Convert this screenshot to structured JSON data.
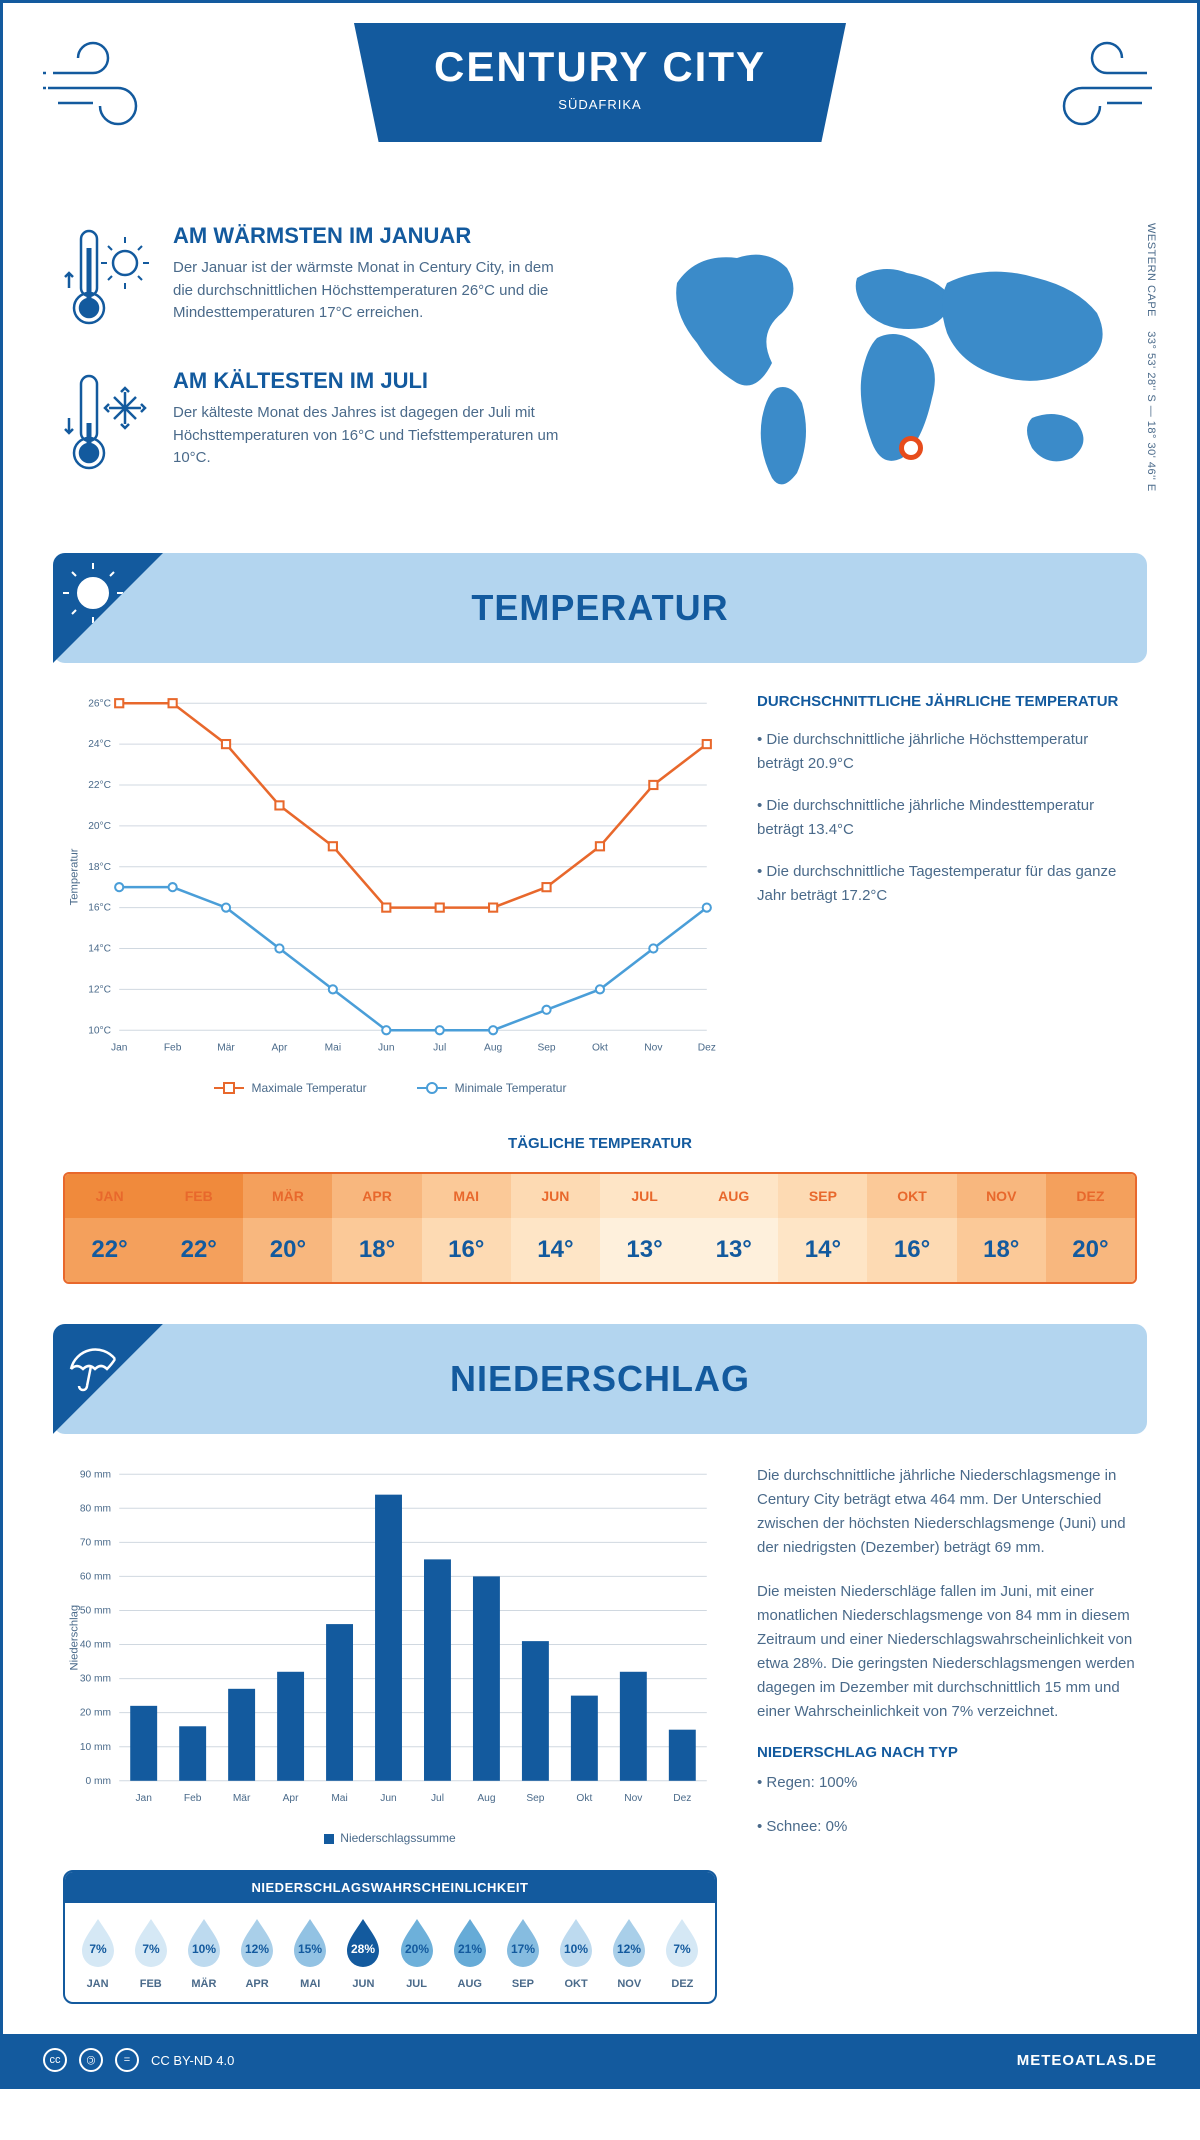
{
  "header": {
    "title": "CENTURY CITY",
    "subtitle": "SÜDAFRIKA"
  },
  "warmest": {
    "title": "AM WÄRMSTEN IM JANUAR",
    "text": "Der Januar ist der wärmste Monat in Century City, in dem die durchschnittlichen Höchsttemperaturen 26°C und die Mindesttemperaturen 17°C erreichen."
  },
  "coldest": {
    "title": "AM KÄLTESTEN IM JULI",
    "text": "Der kälteste Monat des Jahres ist dagegen der Juli mit Höchsttemperaturen von 16°C und Tiefsttemperaturen um 10°C."
  },
  "coords": {
    "lat": "33° 53' 28'' S",
    "lon": "18° 30' 46'' E",
    "region": "WESTERN CAPE"
  },
  "sections": {
    "temp": "TEMPERATUR",
    "precip": "NIEDERSCHLAG"
  },
  "months": [
    "Jan",
    "Feb",
    "Mär",
    "Apr",
    "Mai",
    "Jun",
    "Jul",
    "Aug",
    "Sep",
    "Okt",
    "Nov",
    "Dez"
  ],
  "months_upper": [
    "JAN",
    "FEB",
    "MÄR",
    "APR",
    "MAI",
    "JUN",
    "JUL",
    "AUG",
    "SEP",
    "OKT",
    "NOV",
    "DEZ"
  ],
  "temp_chart": {
    "type": "line",
    "ylabel": "Temperatur",
    "ylim": [
      10,
      26
    ],
    "ytick_step": 2,
    "max_values": [
      26,
      26,
      24,
      21,
      19,
      16,
      16,
      16,
      17,
      19,
      22,
      24
    ],
    "min_values": [
      17,
      17,
      16,
      14,
      12,
      10,
      10,
      10,
      11,
      12,
      14,
      16
    ],
    "max_color": "#e8682c",
    "min_color": "#4a9ed8",
    "max_label": "Maximale Temperatur",
    "min_label": "Minimale Temperatur",
    "grid_color": "#d0d8e0",
    "background": "#ffffff"
  },
  "temp_info": {
    "title": "DURCHSCHNITTLICHE JÄHRLICHE TEMPERATUR",
    "p1": "• Die durchschnittliche jährliche Höchsttemperatur beträgt 20.9°C",
    "p2": "• Die durchschnittliche jährliche Mindesttemperatur beträgt 13.4°C",
    "p3": "• Die durchschnittliche Tagestemperatur für das ganze Jahr beträgt 17.2°C"
  },
  "daily_temp": {
    "title": "TÄGLICHE TEMPERATUR",
    "values": [
      "22°",
      "22°",
      "20°",
      "18°",
      "16°",
      "14°",
      "13°",
      "13°",
      "14°",
      "16°",
      "18°",
      "20°"
    ],
    "head_bg_colors": [
      "#f08a3c",
      "#f08a3c",
      "#f4a05c",
      "#f8b77e",
      "#fbc998",
      "#fddab3",
      "#fee5c6",
      "#fee5c6",
      "#fddab3",
      "#fbc998",
      "#f8b77e",
      "#f4a05c"
    ],
    "val_bg_colors": [
      "#f4a05c",
      "#f4a05c",
      "#f8b77e",
      "#fbc998",
      "#fddab3",
      "#fee5c6",
      "#fef0dc",
      "#fef0dc",
      "#fee5c6",
      "#fddab3",
      "#fbc998",
      "#f8b77e"
    ],
    "border_color": "#e8682c"
  },
  "precip_chart": {
    "type": "bar",
    "ylabel": "Niederschlag",
    "ylim": [
      0,
      90
    ],
    "ytick_step": 10,
    "values": [
      22,
      16,
      27,
      32,
      46,
      84,
      65,
      60,
      41,
      25,
      32,
      15
    ],
    "bar_color": "#135a9e",
    "legend_label": "Niederschlagssumme",
    "grid_color": "#d0d8e0"
  },
  "precip_info": {
    "p1": "Die durchschnittliche jährliche Niederschlagsmenge in Century City beträgt etwa 464 mm. Der Unterschied zwischen der höchsten Niederschlagsmenge (Juni) und der niedrigsten (Dezember) beträgt 69 mm.",
    "p2": "Die meisten Niederschläge fallen im Juni, mit einer monatlichen Niederschlagsmenge von 84 mm in diesem Zeitraum und einer Niederschlagswahrscheinlichkeit von etwa 28%. Die geringsten Niederschlagsmengen werden dagegen im Dezember mit durchschnittlich 15 mm und einer Wahrscheinlichkeit von 7% verzeichnet.",
    "type_title": "NIEDERSCHLAG NACH TYP",
    "type1": "• Regen: 100%",
    "type2": "• Schnee: 0%"
  },
  "rain_prob": {
    "title": "NIEDERSCHLAGSWAHRSCHEINLICHKEIT",
    "values": [
      7,
      7,
      10,
      12,
      15,
      28,
      20,
      21,
      17,
      10,
      12,
      7
    ],
    "max_value": 28,
    "fill_colors": [
      "#d5e8f5",
      "#d5e8f5",
      "#bddaef",
      "#a9cfe9",
      "#92c2e3",
      "#135a9e",
      "#6db0da",
      "#66abd7",
      "#86bce0",
      "#bddaef",
      "#a9cfe9",
      "#d5e8f5"
    ],
    "text_colors": [
      "#135a9e",
      "#135a9e",
      "#135a9e",
      "#135a9e",
      "#135a9e",
      "#ffffff",
      "#135a9e",
      "#135a9e",
      "#135a9e",
      "#135a9e",
      "#135a9e",
      "#135a9e"
    ]
  },
  "footer": {
    "license": "CC BY-ND 4.0",
    "brand": "METEOATLAS.DE"
  },
  "colors": {
    "primary": "#135a9e",
    "light_blue": "#b3d5ef",
    "orange": "#e8682c",
    "marker": "#e74c1c"
  }
}
